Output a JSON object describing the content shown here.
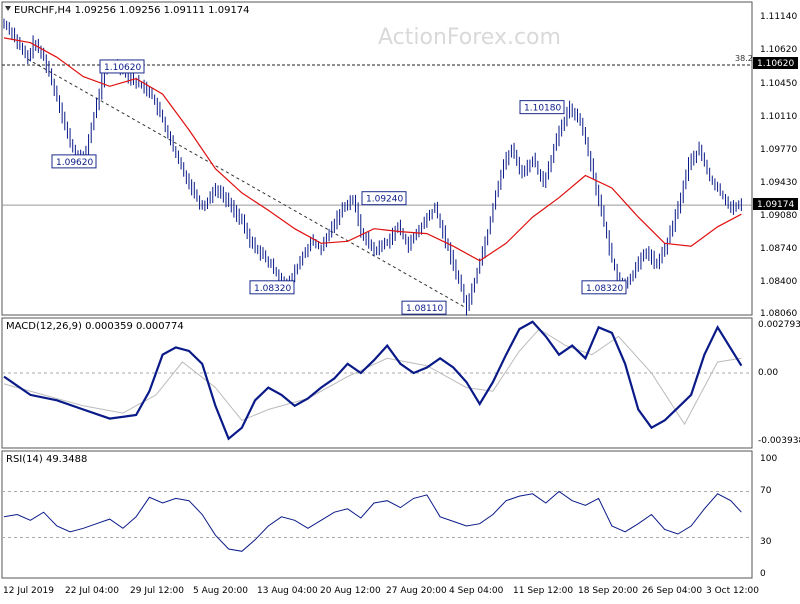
{
  "watermark": "ActionForex.com",
  "price_panel": {
    "header": "EURCHF,H4  1.09256 1.09256 1.09111 1.09174",
    "ticks": [
      "1.11140",
      "1.10620",
      "1.10450",
      "1.10110",
      "1.09770",
      "1.09430",
      "1.09080",
      "1.08740",
      "1.08400",
      "1.08060"
    ],
    "fib_label": "38.2",
    "fib_level_tag": "1.10620",
    "current_tag": "1.09174",
    "annotations": [
      "1.10620",
      "1.09620",
      "1.10180",
      "1.09240",
      "1.08320",
      "1.08110",
      "1.08320"
    ]
  },
  "macd_panel": {
    "header": "MACD(12,26,9) 0.000359 0.000774",
    "ticks": [
      "0.002793",
      "0.00",
      "-0.003938"
    ]
  },
  "rsi_panel": {
    "header": "RSI(14) 49.3488",
    "ticks": [
      "100",
      "70",
      "30",
      "0"
    ]
  },
  "x_labels": [
    "12 Jul 2019",
    "22 Jul 04:00",
    "29 Jul 12:00",
    "5 Aug 20:00",
    "13 Aug 04:00",
    "20 Aug 12:00",
    "27 Aug 20:00",
    "4 Sep 04:00",
    "11 Sep 12:00",
    "18 Sep 20:00",
    "26 Sep 04:00",
    "3 Oct 12:00"
  ],
  "colors": {
    "bull": "#0a1a88",
    "bear": "#0a1a88",
    "ma": "#e01010",
    "macd": "#0a1a88",
    "signal": "#bbbbbb",
    "rsi": "#0a1a88",
    "grid": "#aaaaaa",
    "frame": "#555555"
  },
  "chart_data": [
    {
      "type": "line",
      "title": "EURCHF,H4",
      "x_unit": "H4 bar index",
      "ylim": [
        1.0806,
        1.1125
      ],
      "series": [
        {
          "name": "EURCHF",
          "x": [
            0,
            6,
            12,
            18,
            22,
            30,
            36,
            42,
            46,
            52,
            60,
            68,
            76,
            86,
            96,
            110,
            120,
            130,
            140,
            150,
            160,
            170,
            180,
            186,
            194,
            206,
            214,
            224,
            232,
            240,
            250,
            258,
            264,
            270,
            280,
            290,
            298,
            306,
            318,
            326,
            334,
            344,
            350,
            358,
            366,
            372,
            378,
            384,
            392,
            400,
            408,
            418,
            428,
            436,
            444,
            452,
            460,
            468,
            476,
            486,
            494,
            502,
            510,
            518,
            526,
            534,
            542,
            550,
            558
          ],
          "values": [
            1.1105,
            1.1095,
            1.108,
            1.1068,
            1.1085,
            1.107,
            1.1045,
            1.102,
            1.0998,
            1.0975,
            1.0962,
            1.101,
            1.1058,
            1.1062,
            1.1048,
            1.1035,
            1.1005,
            1.0968,
            1.094,
            1.0915,
            1.0935,
            1.092,
            1.09,
            1.088,
            1.0868,
            1.0848,
            1.0832,
            1.086,
            1.088,
            1.0872,
            1.09,
            1.0918,
            1.0924,
            1.089,
            1.087,
            1.088,
            1.0895,
            1.0876,
            1.09,
            1.0915,
            1.088,
            1.084,
            1.0811,
            1.085,
            1.089,
            1.093,
            1.096,
            1.0975,
            1.095,
            1.0965,
            1.094,
            1.0985,
            1.1018,
            1.1005,
            1.096,
            1.091,
            1.086,
            1.0832,
            1.0848,
            1.087,
            1.0855,
            1.088,
            1.0915,
            1.096,
            1.0975,
            1.0945,
            1.093,
            1.0915,
            1.0917
          ]
        },
        {
          "name": "MA",
          "x": [
            0,
            20,
            40,
            60,
            80,
            100,
            120,
            140,
            160,
            180,
            200,
            220,
            240,
            260,
            280,
            300,
            320,
            340,
            360,
            380,
            400,
            420,
            440,
            460,
            480,
            500,
            520,
            540,
            558
          ],
          "values": [
            1.109,
            1.1085,
            1.107,
            1.105,
            1.104,
            1.1048,
            1.1032,
            1.0995,
            1.0955,
            1.093,
            1.0912,
            1.0893,
            1.0878,
            1.088,
            1.0893,
            1.089,
            1.0888,
            1.0875,
            1.086,
            1.0878,
            1.0905,
            1.0925,
            1.0948,
            1.0935,
            1.0905,
            1.0878,
            1.0875,
            1.0895,
            1.0908
          ]
        }
      ]
    },
    {
      "type": "line",
      "title": "MACD(12,26,9)",
      "x_unit": "H4 bar index",
      "ylim": [
        -0.004,
        0.0029
      ],
      "series": [
        {
          "name": "MACD",
          "x": [
            0,
            20,
            40,
            60,
            80,
            100,
            110,
            120,
            130,
            140,
            150,
            160,
            170,
            180,
            190,
            200,
            210,
            220,
            230,
            240,
            250,
            260,
            270,
            280,
            290,
            300,
            310,
            320,
            330,
            340,
            350,
            360,
            370,
            380,
            390,
            400,
            410,
            420,
            430,
            440,
            450,
            460,
            470,
            480,
            490,
            500,
            510,
            520,
            530,
            540,
            558
          ],
          "values": [
            -0.0002,
            -0.0012,
            -0.0015,
            -0.002,
            -0.0025,
            -0.0023,
            -0.001,
            0.001,
            0.0014,
            0.0012,
            0.0005,
            -0.0018,
            -0.0036,
            -0.003,
            -0.0015,
            -0.0008,
            -0.0012,
            -0.0018,
            -0.0014,
            -0.0008,
            -0.0003,
            0.0005,
            0.0,
            0.0007,
            0.0015,
            0.0005,
            0.0,
            0.0003,
            0.0008,
            0.0003,
            -0.0005,
            -0.0017,
            -0.0005,
            0.001,
            0.0024,
            0.0028,
            0.002,
            0.001,
            0.0015,
            0.0008,
            0.0025,
            0.0022,
            0.0005,
            -0.002,
            -0.003,
            -0.0026,
            -0.0019,
            -0.0012,
            0.001,
            0.0025,
            0.0004
          ]
        },
        {
          "name": "Signal",
          "x": [
            0,
            30,
            60,
            90,
            115,
            135,
            160,
            180,
            200,
            230,
            260,
            290,
            320,
            350,
            370,
            390,
            405,
            425,
            445,
            465,
            490,
            515,
            540,
            558
          ],
          "values": [
            -0.0006,
            -0.0012,
            -0.0018,
            -0.0022,
            -0.0012,
            0.0006,
            -0.0008,
            -0.0026,
            -0.002,
            -0.0014,
            -0.0002,
            0.0008,
            0.0004,
            -0.0008,
            -0.001,
            0.0012,
            0.0024,
            0.0015,
            0.001,
            0.002,
            0.0,
            -0.0028,
            0.0006,
            0.0008
          ]
        }
      ]
    },
    {
      "type": "line",
      "title": "RSI(14)",
      "x_unit": "H4 bar index",
      "ylim": [
        0,
        100
      ],
      "series": [
        {
          "name": "RSI(14)",
          "x": [
            0,
            10,
            20,
            30,
            40,
            50,
            60,
            70,
            80,
            90,
            100,
            110,
            120,
            130,
            140,
            150,
            160,
            170,
            180,
            190,
            200,
            210,
            220,
            230,
            240,
            250,
            260,
            270,
            280,
            290,
            300,
            310,
            320,
            330,
            340,
            350,
            360,
            370,
            380,
            390,
            400,
            410,
            420,
            430,
            440,
            450,
            460,
            470,
            480,
            490,
            500,
            510,
            520,
            530,
            540,
            550,
            558
          ],
          "values": [
            48,
            50,
            45,
            52,
            40,
            35,
            38,
            42,
            46,
            38,
            48,
            65,
            60,
            64,
            62,
            50,
            32,
            20,
            18,
            28,
            40,
            48,
            45,
            38,
            45,
            52,
            55,
            47,
            60,
            62,
            56,
            64,
            67,
            48,
            44,
            40,
            42,
            50,
            62,
            66,
            68,
            60,
            70,
            62,
            58,
            64,
            40,
            35,
            42,
            50,
            37,
            33,
            40,
            55,
            68,
            62,
            52
          ]
        }
      ]
    }
  ]
}
